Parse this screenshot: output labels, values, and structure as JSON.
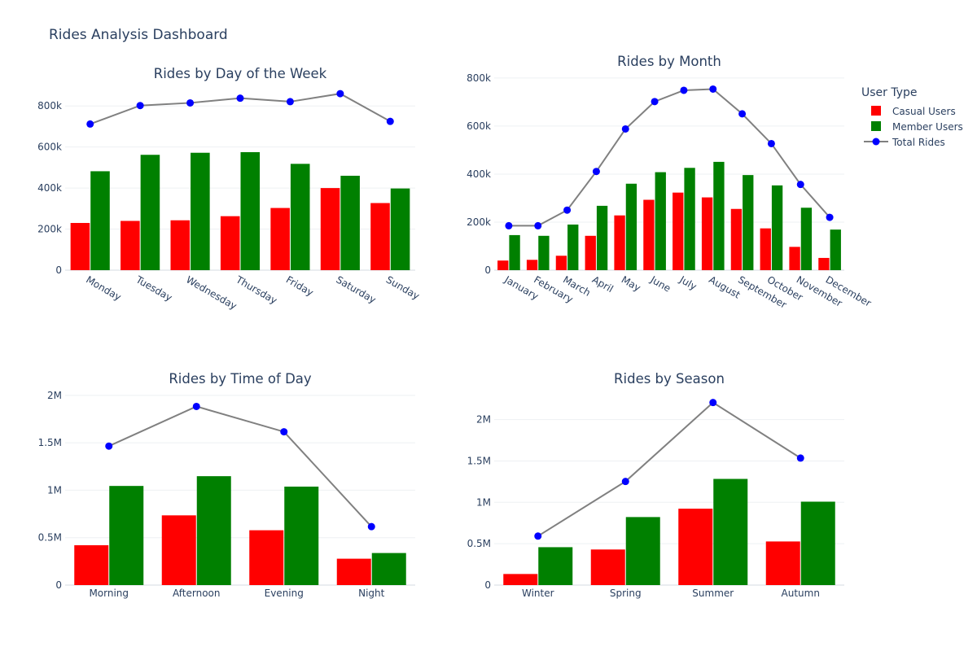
{
  "dashboard": {
    "title": "Rides Analysis Dashboard"
  },
  "legend": {
    "title": "User Type",
    "items": [
      {
        "label": "Casual Users",
        "color": "#ff0000",
        "kind": "bar"
      },
      {
        "label": "Member Users",
        "color": "#008000",
        "kind": "bar"
      },
      {
        "label": "Total Rides",
        "color": "#808080",
        "marker": "#0000ff",
        "kind": "line"
      }
    ]
  },
  "chart_data": [
    {
      "type": "bar",
      "title": "Rides by Day of the Week",
      "categories": [
        "Monday",
        "Tuesday",
        "Wednesday",
        "Thursday",
        "Friday",
        "Saturday",
        "Sunday"
      ],
      "series": [
        {
          "name": "Casual Users",
          "type": "bar",
          "color": "#ff0000",
          "values": [
            230000,
            240000,
            243000,
            263000,
            303000,
            400000,
            327000
          ]
        },
        {
          "name": "Member Users",
          "type": "bar",
          "color": "#008000",
          "values": [
            482000,
            562000,
            572000,
            575000,
            518000,
            460000,
            398000
          ]
        },
        {
          "name": "Total Rides",
          "type": "line",
          "color": "#808080",
          "marker": "#0000ff",
          "values": [
            712000,
            802000,
            815000,
            838000,
            821000,
            860000,
            725000
          ]
        }
      ],
      "ylim": [
        0,
        900000
      ],
      "yticks": [
        0,
        200000,
        400000,
        600000,
        800000
      ],
      "ytick_labels": [
        "0",
        "200k",
        "400k",
        "600k",
        "800k"
      ],
      "xtick_rotation": 30
    },
    {
      "type": "bar",
      "title": "Rides by Month",
      "categories": [
        "January",
        "February",
        "March",
        "April",
        "May",
        "June",
        "July",
        "August",
        "September",
        "October",
        "November",
        "December"
      ],
      "series": [
        {
          "name": "Casual Users",
          "type": "bar",
          "color": "#ff0000",
          "values": [
            40000,
            43000,
            60000,
            143000,
            228000,
            293000,
            323000,
            303000,
            255000,
            174000,
            97000,
            51000
          ]
        },
        {
          "name": "Member Users",
          "type": "bar",
          "color": "#008000",
          "values": [
            146000,
            143000,
            190000,
            268000,
            360000,
            408000,
            426000,
            451000,
            396000,
            353000,
            260000,
            169000
          ]
        },
        {
          "name": "Total Rides",
          "type": "line",
          "color": "#808080",
          "marker": "#0000ff",
          "values": [
            185000,
            185000,
            250000,
            411000,
            588000,
            702000,
            749000,
            754000,
            651000,
            527000,
            357000,
            220000
          ]
        }
      ],
      "ylim": [
        0,
        820000
      ],
      "yticks": [
        0,
        200000,
        400000,
        600000,
        800000
      ],
      "ytick_labels": [
        "0",
        "200k",
        "400k",
        "600k",
        "800k"
      ],
      "xtick_rotation": 30
    },
    {
      "type": "bar",
      "title": "Rides by Time of Day",
      "categories": [
        "Morning",
        "Afternoon",
        "Evening",
        "Night"
      ],
      "series": [
        {
          "name": "Casual Users",
          "type": "bar",
          "color": "#ff0000",
          "values": [
            420000,
            735000,
            578000,
            278000
          ]
        },
        {
          "name": "Member Users",
          "type": "bar",
          "color": "#008000",
          "values": [
            1045000,
            1148000,
            1038000,
            338000
          ]
        },
        {
          "name": "Total Rides",
          "type": "line",
          "color": "#808080",
          "marker": "#0000ff",
          "values": [
            1465000,
            1883000,
            1616000,
            616000
          ]
        }
      ],
      "ylim": [
        0,
        2050000
      ],
      "yticks": [
        0,
        500000,
        1000000,
        1500000,
        2000000
      ],
      "ytick_labels": [
        "0",
        "0.5M",
        "1M",
        "1.5M",
        "2M"
      ],
      "xtick_rotation": 0
    },
    {
      "type": "bar",
      "title": "Rides by Season",
      "categories": [
        "Winter",
        "Spring",
        "Summer",
        "Autumn"
      ],
      "series": [
        {
          "name": "Casual Users",
          "type": "bar",
          "color": "#ff0000",
          "values": [
            134000,
            430000,
            923000,
            527000
          ]
        },
        {
          "name": "Member Users",
          "type": "bar",
          "color": "#008000",
          "values": [
            458000,
            822000,
            1283000,
            1008000
          ]
        },
        {
          "name": "Total Rides",
          "type": "line",
          "color": "#808080",
          "marker": "#0000ff",
          "values": [
            592000,
            1252000,
            2206000,
            1535000
          ]
        }
      ],
      "ylim": [
        0,
        2350000
      ],
      "yticks": [
        0,
        500000,
        1000000,
        1500000,
        2000000
      ],
      "ytick_labels": [
        "0",
        "0.5M",
        "1M",
        "1.5M",
        "2M"
      ],
      "xtick_rotation": 0
    }
  ]
}
